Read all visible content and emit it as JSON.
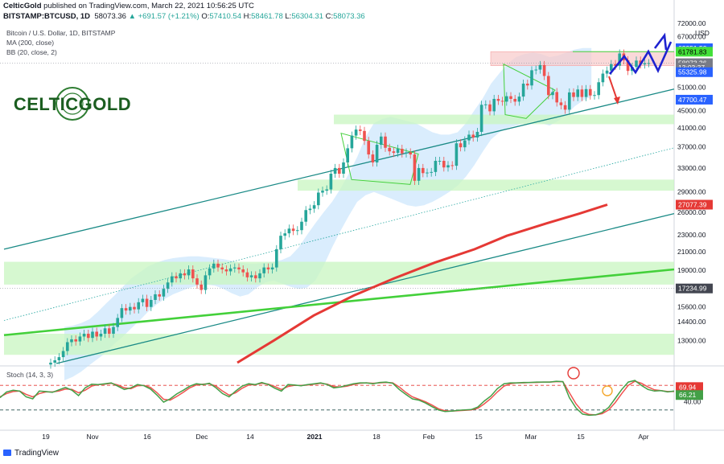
{
  "header": {
    "publisher": "CelticGold",
    "published_text": "published on TradingView.com, March 22, 2021 10:56:25 UTC",
    "symbol": "BITSTAMP:BTCUSD, 1D",
    "last": "58073.36",
    "change": "▲ +691.57 (+1.21%)",
    "o_label": "O:",
    "o_value": "57410.54",
    "h_label": "H:",
    "h_value": "58461.78",
    "l_label": "L:",
    "l_value": "56304.31",
    "c_label": "C:",
    "c_value": "58073.36"
  },
  "indicators": {
    "title": "Bitcoin / U.S. Dollar, 1D, BITSTAMP",
    "ma": "MA (200, close)",
    "bb": "BB (20, close, 2)",
    "stoch": "Stoch (14, 3, 3)"
  },
  "logo_text": "CELTICGOLD",
  "footer": "TradingView",
  "chart_data": {
    "type": "candlestick",
    "title": "Bitcoin / U.S. Dollar, 1D, BITSTAMP",
    "currency": "USD",
    "yscale": "log",
    "ylim": [
      11500,
      72000
    ],
    "price_ticks": [
      72000,
      67000,
      51000,
      45000,
      41000,
      37000,
      33000,
      29000,
      26000,
      23000,
      21000,
      19000,
      15600,
      14400,
      13000
    ],
    "x_ticks": [
      "19",
      "Nov",
      "16",
      "Dec",
      "14",
      "2021",
      "18",
      "Feb",
      "15",
      "Mar",
      "15",
      "Apr"
    ],
    "price_labels": [
      {
        "text": "62951.50",
        "value": 62951.5,
        "color": "#2962ff"
      },
      {
        "text": "61781.83",
        "value": 61781.83,
        "color": "#43e03a"
      },
      {
        "text": "58073.36",
        "value": 58073.36,
        "color": "#787b86"
      },
      {
        "text": "13:03:37",
        "value": 56700,
        "color": "#787b86"
      },
      {
        "text": "55325.98",
        "value": 55325.98,
        "color": "#2962ff"
      },
      {
        "text": "47700.47",
        "value": 47700.47,
        "color": "#2962ff"
      },
      {
        "text": "27077.39",
        "value": 27077.39,
        "color": "#e53935"
      },
      {
        "text": "17234.99",
        "value": 17234.99,
        "color": "#434651"
      }
    ],
    "closes": [
      11550,
      11700,
      11900,
      12300,
      12900,
      13100,
      12950,
      13300,
      13500,
      13200,
      13650,
      13300,
      13500,
      13900,
      13500,
      14000,
      14700,
      15500,
      15300,
      15600,
      15400,
      16000,
      16300,
      15600,
      16200,
      16700,
      16500,
      17200,
      17800,
      18400,
      18200,
      18700,
      18500,
      19100,
      18200,
      17600,
      17100,
      18500,
      19200,
      19700,
      19300,
      19100,
      18900,
      19200,
      19300,
      19100,
      18800,
      18300,
      18500,
      18200,
      18700,
      19300,
      19100,
      19300,
      21300,
      22900,
      23200,
      23800,
      23500,
      23600,
      24700,
      26300,
      26500,
      27000,
      28900,
      29200,
      29400,
      32000,
      33000,
      32000,
      34000,
      36700,
      39300,
      40600,
      40300,
      38200,
      35500,
      34000,
      37400,
      39100,
      36800,
      36100,
      35800,
      36600,
      35700,
      35900,
      35500,
      30800,
      33000,
      32100,
      32200,
      32300,
      34300,
      34300,
      33100,
      33500,
      33400,
      37700,
      36900,
      38300,
      39500,
      38900,
      40100,
      46400,
      46500,
      44800,
      47900,
      47400,
      47200,
      48600,
      47900,
      47200,
      48500,
      52000,
      51500,
      55900,
      56100,
      57500,
      54200,
      48900,
      49700,
      47000,
      46300,
      45200,
      49600,
      48400,
      50400,
      48400,
      50500,
      48800,
      48900,
      52400,
      54900,
      55800,
      57800,
      57300,
      61200,
      59000,
      55700,
      56900,
      58900,
      57700,
      58100,
      58100
    ],
    "bb_upper": [
      14000,
      14100,
      14300,
      14600,
      15200,
      15900,
      16600,
      17400,
      18200,
      18800,
      19400,
      19800,
      20100,
      20300,
      20400,
      20500,
      20500,
      20400,
      20300,
      20200,
      20000,
      19800,
      19700,
      19700,
      19800,
      19900,
      20100,
      20500,
      21500,
      23000,
      24500,
      26000,
      27500,
      29500,
      32000,
      35000,
      39000,
      42000,
      43000,
      43500,
      43000,
      42500,
      42000,
      41000,
      40000,
      39500,
      39500,
      40000,
      42000,
      45000,
      48000,
      52000,
      55000,
      58000,
      60000,
      61000,
      61500,
      61000,
      60000,
      60500,
      61500,
      62500,
      63000,
      63000
    ],
    "bb_lower": [
      10500,
      10700,
      11000,
      11400,
      11800,
      12200,
      12800,
      13300,
      13900,
      14500,
      15200,
      15800,
      16300,
      16700,
      17000,
      17300,
      17500,
      17600,
      17500,
      17200,
      16800,
      16500,
      16700,
      17300,
      17800,
      18000,
      17700,
      17400,
      17200,
      17300,
      18000,
      19500,
      21500,
      23500,
      25500,
      27500,
      28500,
      29000,
      28500,
      28000,
      27500,
      27000,
      26800,
      27000,
      27500,
      28200,
      29000,
      30000,
      31500,
      33500,
      36000,
      38500,
      40000,
      41000,
      41500,
      42000,
      42500,
      42000,
      41500,
      42500,
      44000,
      46000,
      47500,
      48500
    ],
    "ma200": [
      [
        295,
        11550
      ],
      [
        340,
        13000
      ],
      [
        390,
        14900
      ],
      [
        440,
        16600
      ],
      [
        490,
        18200
      ],
      [
        540,
        19800
      ],
      [
        590,
        21300
      ],
      [
        630,
        22900
      ],
      [
        680,
        24500
      ],
      [
        720,
        25800
      ],
      [
        755,
        27077
      ]
    ],
    "stoch_k": [
      50,
      64,
      68,
      66,
      52,
      47,
      66,
      65,
      63,
      69,
      75,
      68,
      55,
      74,
      83,
      82,
      84,
      86,
      78,
      70,
      74,
      82,
      79,
      71,
      56,
      39,
      47,
      59,
      68,
      78,
      84,
      82,
      85,
      74,
      60,
      52,
      66,
      78,
      84,
      82,
      87,
      82,
      73,
      66,
      82,
      81,
      79,
      82,
      84,
      86,
      82,
      74,
      76,
      80,
      84,
      86,
      86,
      84,
      87,
      88,
      85,
      70,
      58,
      47,
      44,
      37,
      28,
      20,
      16,
      17,
      19,
      20,
      21,
      27,
      42,
      54,
      72,
      84,
      86,
      86,
      87,
      87,
      88,
      88,
      88,
      90,
      89,
      50,
      25,
      10,
      7,
      8,
      14,
      26,
      48,
      70,
      88,
      92,
      80,
      70,
      66,
      67,
      64,
      66
    ],
    "stoch_d": [
      52,
      60,
      65,
      66,
      58,
      52,
      60,
      64,
      64,
      66,
      71,
      70,
      62,
      68,
      78,
      82,
      83,
      85,
      81,
      74,
      72,
      79,
      80,
      75,
      62,
      46,
      44,
      53,
      63,
      74,
      81,
      83,
      84,
      78,
      66,
      56,
      62,
      73,
      81,
      82,
      85,
      83,
      77,
      70,
      77,
      80,
      80,
      81,
      83,
      85,
      83,
      77,
      76,
      78,
      82,
      85,
      86,
      85,
      86,
      87,
      86,
      76,
      63,
      52,
      46,
      40,
      32,
      23,
      18,
      17,
      18,
      19,
      20,
      24,
      35,
      48,
      64,
      78,
      84,
      86,
      86,
      87,
      87,
      88,
      88,
      89,
      89,
      62,
      35,
      16,
      9,
      8,
      11,
      20,
      38,
      60,
      80,
      90,
      85,
      76,
      69,
      67,
      65,
      65
    ],
    "stoch_ticks": [
      40
    ],
    "stoch_labels": [
      {
        "text": "69.94",
        "value": 69.94,
        "color": "#e53935"
      },
      {
        "text": "66.21",
        "value": 66.21,
        "color": "#43a047"
      }
    ]
  }
}
